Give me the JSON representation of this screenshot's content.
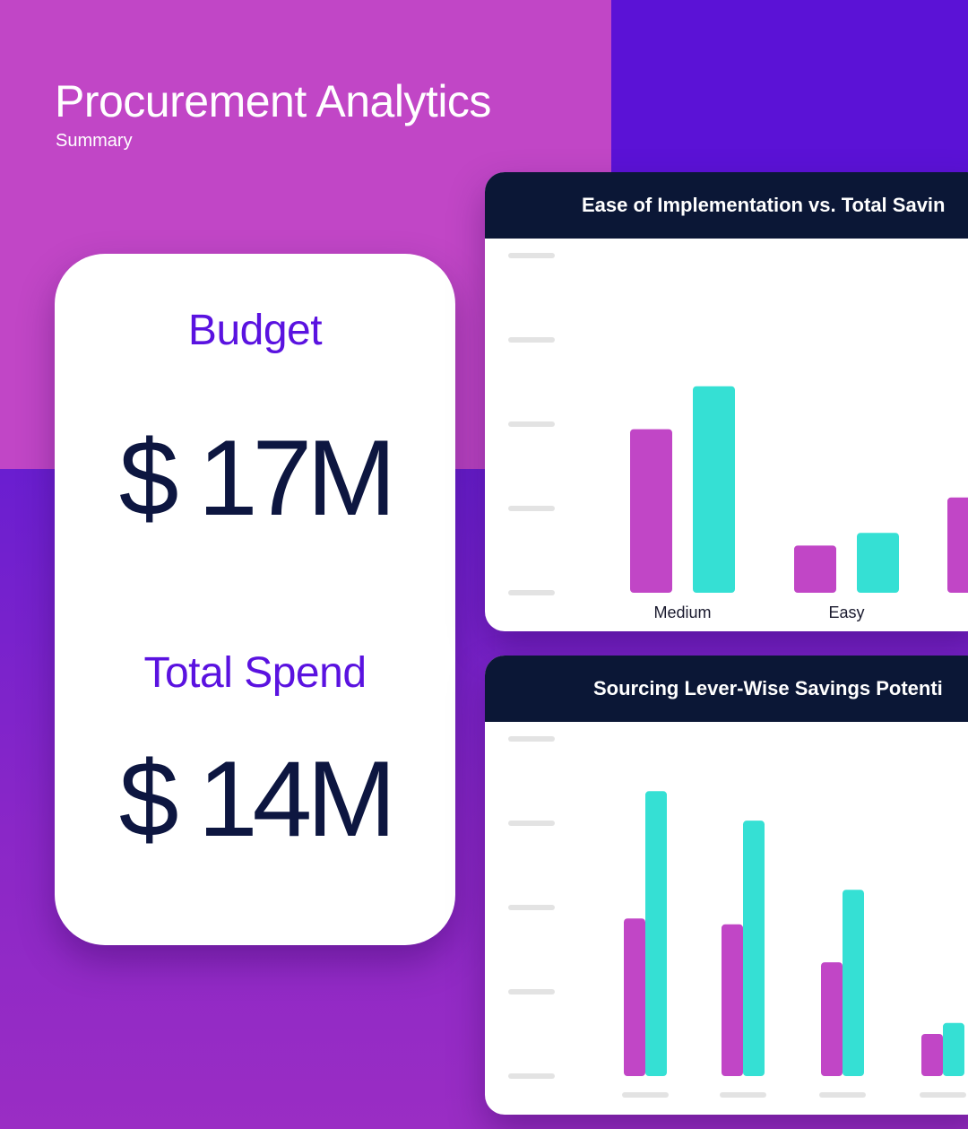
{
  "header": {
    "title": "Procurement Analytics",
    "subtitle": "Summary"
  },
  "kpis": {
    "budget_label": "Budget",
    "budget_value": "$ 17M",
    "spend_label": "Total Spend",
    "spend_value": "$ 14M"
  },
  "colors": {
    "magenta": "#c146c6",
    "teal": "#35e0d4",
    "navy": "#0b1736",
    "violet": "#5a12e0"
  },
  "chart_data": [
    {
      "type": "bar",
      "title": "Ease of Implementation vs. Total Savin",
      "categories": [
        "Medium",
        "Easy",
        ""
      ],
      "series": [
        {
          "color": "#c146c6",
          "values": [
            1.94,
            0.56,
            1.13
          ]
        },
        {
          "color": "#35e0d4",
          "values": [
            2.45,
            0.71,
            null
          ]
        }
      ],
      "ylim": [
        0,
        4
      ],
      "grid": true
    },
    {
      "type": "bar",
      "title": "Sourcing Lever-Wise Savings Potenti",
      "categories": [
        "",
        "",
        "",
        ""
      ],
      "series": [
        {
          "color": "#c146c6",
          "values": [
            1.87,
            1.8,
            1.35,
            0.5
          ]
        },
        {
          "color": "#35e0d4",
          "values": [
            3.38,
            3.03,
            2.21,
            0.63
          ]
        }
      ],
      "ylim": [
        0,
        4
      ],
      "grid": true
    }
  ]
}
